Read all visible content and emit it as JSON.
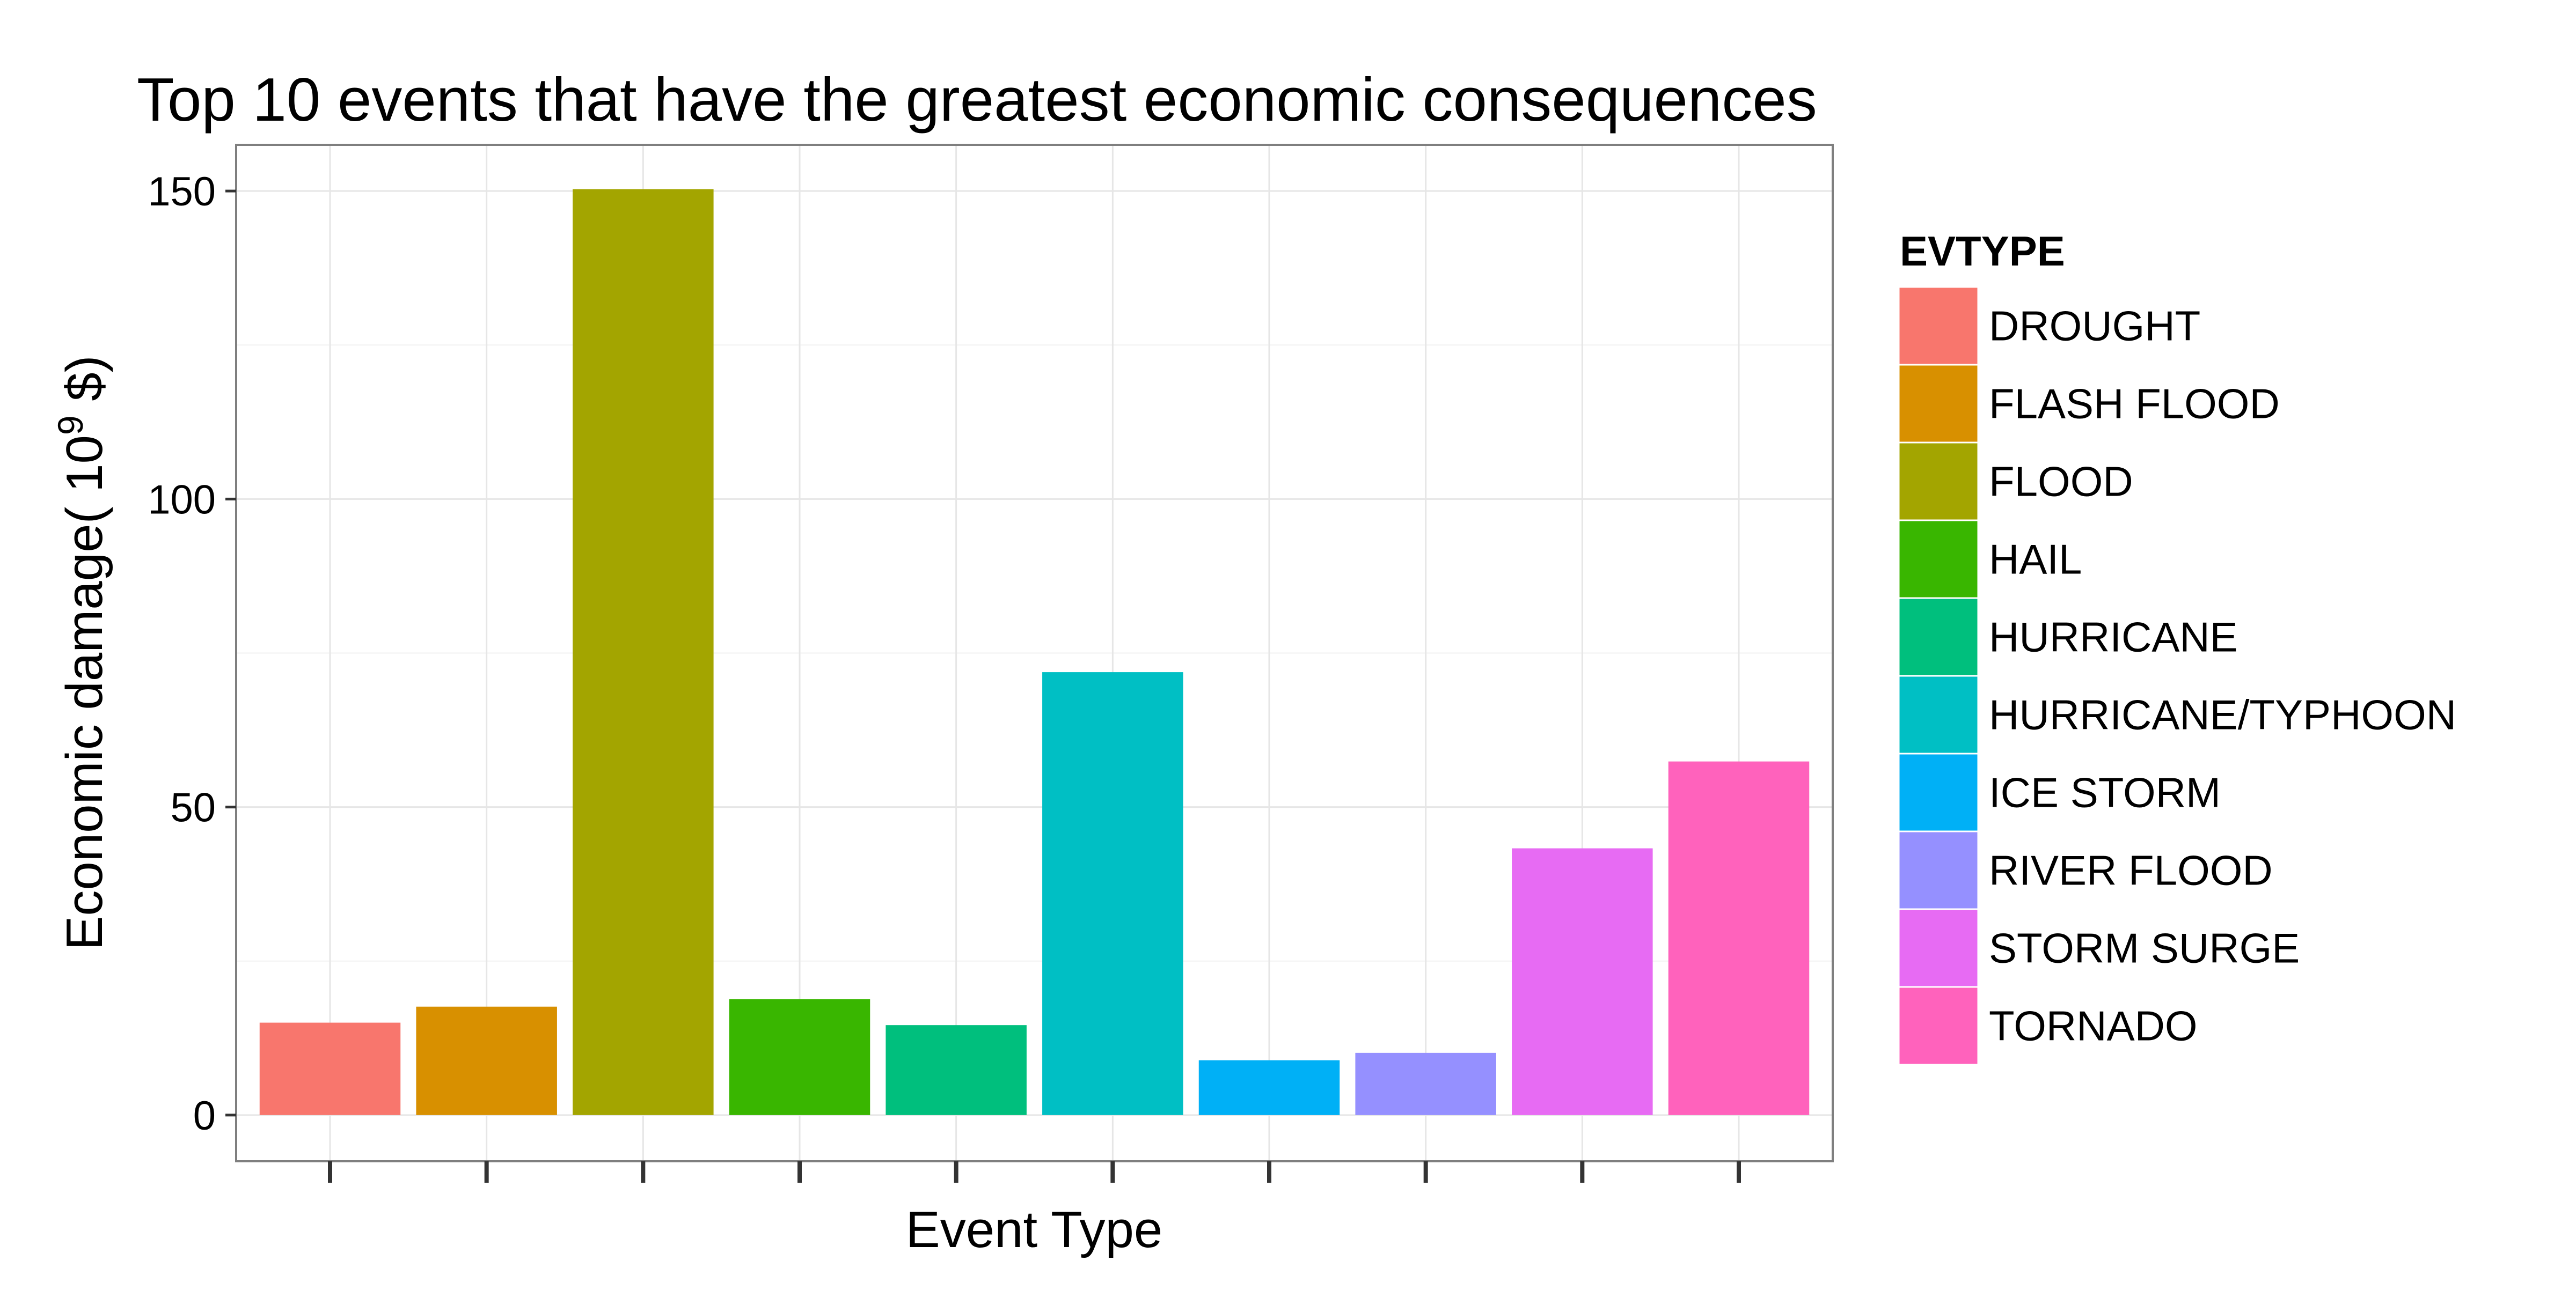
{
  "chart_data": {
    "type": "bar",
    "title": "Top 10 events that have the greatest economic consequences",
    "xlabel": "Event Type",
    "ylabel_prefix": "Economic damage( 10",
    "ylabel_exponent": "9",
    "ylabel_suffix": " $)",
    "categories": [
      "DROUGHT",
      "FLASH FLOOD",
      "FLOOD",
      "HAIL",
      "HURRICANE",
      "HURRICANE/TYPHOON",
      "ICE STORM",
      "RIVER FLOOD",
      "STORM SURGE",
      "TORNADO"
    ],
    "values": [
      15.0,
      17.6,
      150.3,
      18.8,
      14.6,
      71.9,
      8.9,
      10.1,
      43.3,
      57.4
    ],
    "colors": [
      "#F8766D",
      "#D89000",
      "#A3A500",
      "#39B600",
      "#00BF7D",
      "#00BFC4",
      "#00B0F6",
      "#9590FF",
      "#E76BF3",
      "#FF62BC"
    ],
    "ylim": [
      -7.5,
      157.5
    ],
    "y_ticks": [
      0,
      50,
      100,
      150
    ],
    "y_minor_ticks": [
      25,
      75,
      125
    ],
    "x_tick_labels_shown": false,
    "grid": true,
    "legend": {
      "title": "EVTYPE",
      "placement": "right"
    }
  }
}
